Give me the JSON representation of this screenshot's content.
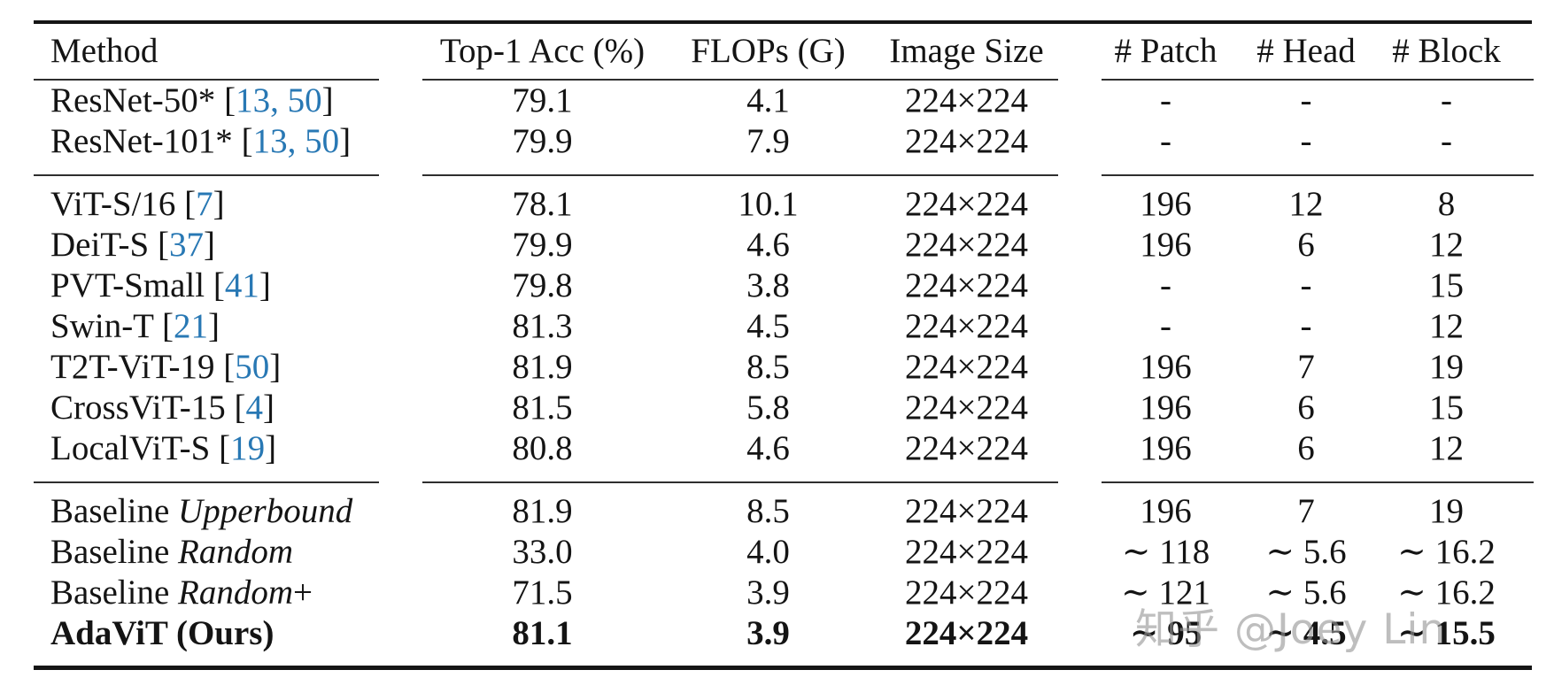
{
  "colors": {
    "background": "#ffffff",
    "text": "#141414",
    "citation_blue": "#2878b4",
    "rule_black": "#151515",
    "watermark_gray": "#969696"
  },
  "watermark": {
    "text": "知乎 @Joey Lin"
  },
  "table": {
    "columns": [
      "Method",
      "Top-1 Acc (%)",
      "FLOPs (G)",
      "Image Size",
      "# Patch",
      "# Head",
      "# Block"
    ],
    "groups": [
      {
        "rows": [
          {
            "method": {
              "name": "ResNet-50* ",
              "bracket_open": "[",
              "cite": "13, 50",
              "bracket_close": "]"
            },
            "acc": "79.1",
            "flops": "4.1",
            "size": "224×224",
            "patch": "-",
            "head": "-",
            "block": "-"
          },
          {
            "method": {
              "name": "ResNet-101* ",
              "bracket_open": "[",
              "cite": "13, 50",
              "bracket_close": "]"
            },
            "acc": "79.9",
            "flops": "7.9",
            "size": "224×224",
            "patch": "-",
            "head": "-",
            "block": "-"
          }
        ]
      },
      {
        "rows": [
          {
            "method": {
              "name": "ViT-S/16 ",
              "bracket_open": "[",
              "cite": "7",
              "bracket_close": "]"
            },
            "acc": "78.1",
            "flops": "10.1",
            "size": "224×224",
            "patch": "196",
            "head": "12",
            "block": "8"
          },
          {
            "method": {
              "name": "DeiT-S ",
              "bracket_open": "[",
              "cite": "37",
              "bracket_close": "]"
            },
            "acc": "79.9",
            "flops": "4.6",
            "size": "224×224",
            "patch": "196",
            "head": "6",
            "block": "12"
          },
          {
            "method": {
              "name": "PVT-Small ",
              "bracket_open": "[",
              "cite": "41",
              "bracket_close": "]"
            },
            "acc": "79.8",
            "flops": "3.8",
            "size": "224×224",
            "patch": "-",
            "head": "-",
            "block": "15"
          },
          {
            "method": {
              "name": "Swin-T ",
              "bracket_open": "[",
              "cite": "21",
              "bracket_close": "]"
            },
            "acc": "81.3",
            "flops": "4.5",
            "size": "224×224",
            "patch": "-",
            "head": "-",
            "block": "12"
          },
          {
            "method": {
              "name": "T2T-ViT-19 ",
              "bracket_open": "[",
              "cite": "50",
              "bracket_close": "]"
            },
            "acc": "81.9",
            "flops": "8.5",
            "size": "224×224",
            "patch": "196",
            "head": "7",
            "block": "19"
          },
          {
            "method": {
              "name": "CrossViT-15 ",
              "bracket_open": "[",
              "cite": "4",
              "bracket_close": "]"
            },
            "acc": "81.5",
            "flops": "5.8",
            "size": "224×224",
            "patch": "196",
            "head": "6",
            "block": "15"
          },
          {
            "method": {
              "name": "LocalViT-S ",
              "bracket_open": "[",
              "cite": "19",
              "bracket_close": "]"
            },
            "acc": "80.8",
            "flops": "4.6",
            "size": "224×224",
            "patch": "196",
            "head": "6",
            "block": "12"
          }
        ]
      },
      {
        "rows": [
          {
            "method": {
              "name": "Baseline ",
              "italic": "Upperbound"
            },
            "acc": "81.9",
            "flops": "8.5",
            "size": "224×224",
            "patch": "196",
            "head": "7",
            "block": "19"
          },
          {
            "method": {
              "name": "Baseline ",
              "italic": "Random"
            },
            "acc": "33.0",
            "flops": "4.0",
            "size": "224×224",
            "patch": "∼ 118",
            "head": "∼ 5.6",
            "block": "∼ 16.2"
          },
          {
            "method": {
              "name": "Baseline ",
              "italic": "Random",
              "suffix": "+"
            },
            "acc": "71.5",
            "flops": "3.9",
            "size": "224×224",
            "patch": "∼ 121",
            "head": "∼ 5.6",
            "block": "∼ 16.2"
          },
          {
            "method": {
              "name": "AdaViT (Ours)"
            },
            "acc": "81.1",
            "flops": "3.9",
            "size": "224×224",
            "patch": "∼ 95",
            "head": "∼ 4.5",
            "block": "∼ 15.5"
          }
        ]
      }
    ]
  }
}
